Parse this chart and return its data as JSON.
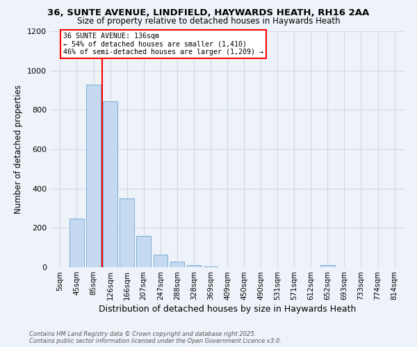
{
  "title1": "36, SUNTE AVENUE, LINDFIELD, HAYWARDS HEATH, RH16 2AA",
  "title2": "Size of property relative to detached houses in Haywards Heath",
  "xlabel": "Distribution of detached houses by size in Haywards Heath",
  "ylabel": "Number of detached properties",
  "categories": [
    "5sqm",
    "45sqm",
    "85sqm",
    "126sqm",
    "166sqm",
    "207sqm",
    "247sqm",
    "288sqm",
    "328sqm",
    "369sqm",
    "409sqm",
    "450sqm",
    "490sqm",
    "531sqm",
    "571sqm",
    "612sqm",
    "652sqm",
    "693sqm",
    "733sqm",
    "774sqm",
    "814sqm"
  ],
  "values": [
    0,
    248,
    930,
    845,
    350,
    160,
    65,
    30,
    10,
    5,
    0,
    0,
    0,
    0,
    0,
    0,
    10,
    0,
    0,
    0,
    0
  ],
  "bar_color": "#c5d9f1",
  "bar_edge_color": "#7bafd4",
  "redline_index": 2.5,
  "annotation_lines": [
    "36 SUNTE AVENUE: 136sqm",
    "← 54% of detached houses are smaller (1,410)",
    "46% of semi-detached houses are larger (1,209) →"
  ],
  "ylim": [
    0,
    1200
  ],
  "yticks": [
    0,
    200,
    400,
    600,
    800,
    1000,
    1200
  ],
  "footer": "Contains HM Land Registry data © Crown copyright and database right 2025.\nContains public sector information licensed under the Open Government Licence v3.0.",
  "grid_color": "#d0d8e8",
  "background_color": "#eef2f9"
}
